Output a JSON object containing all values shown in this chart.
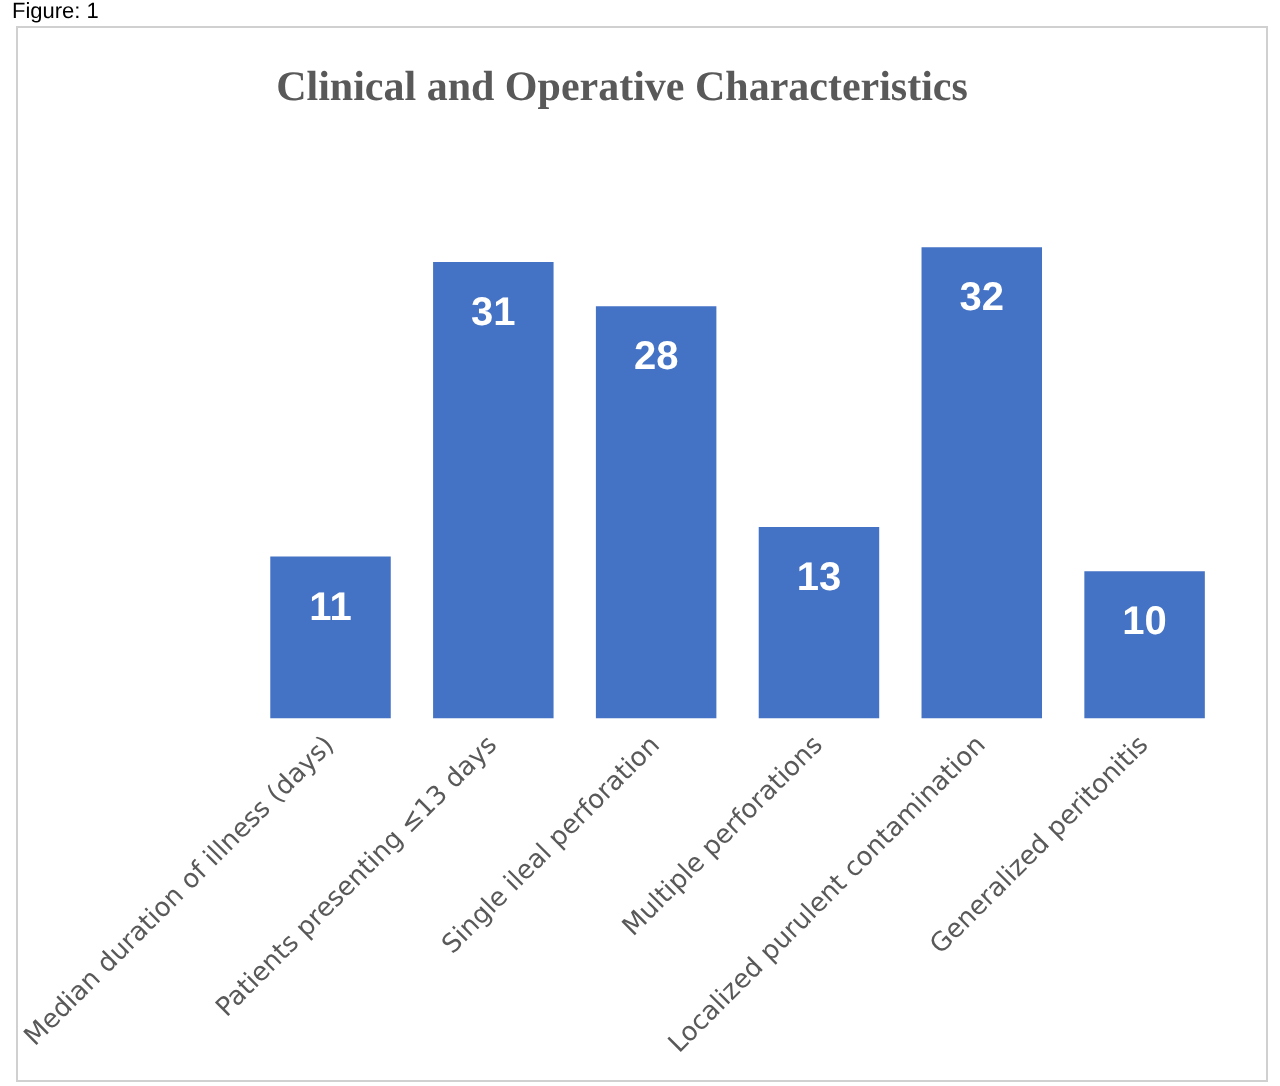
{
  "chart_data": {
    "type": "bar",
    "title": "Clinical and Operative Characteristics",
    "annotations": [
      "Figure: 1"
    ],
    "categories": [
      "Median duration of illness (days)",
      "Patients presenting ≤13 days",
      "Single ileal perforation",
      "Multiple perforations",
      "Localized purulent contamination",
      "Generalized peritonitis"
    ],
    "values": [
      11,
      31,
      28,
      13,
      32,
      10
    ],
    "color": "#4472c4",
    "data_labels": true,
    "grid": false,
    "legend": false
  }
}
